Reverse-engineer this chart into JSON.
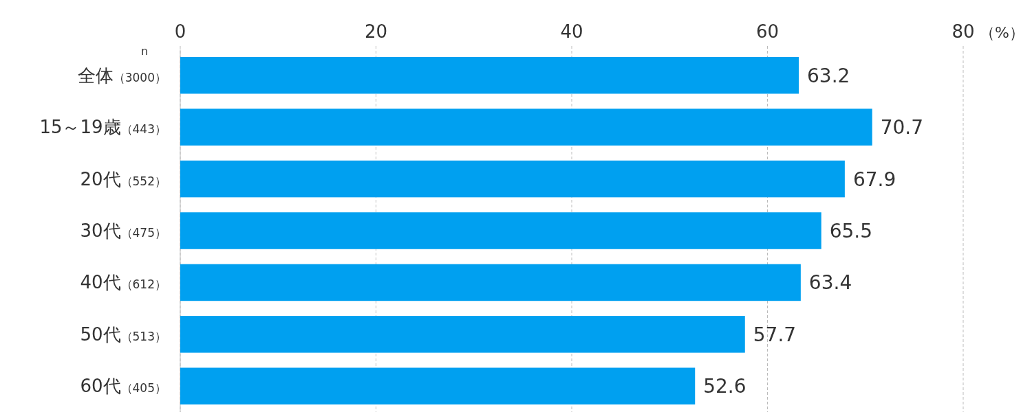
{
  "chart_data": {
    "type": "bar",
    "orientation": "horizontal",
    "categories": [
      "全体（3000）",
      "15～19歳（443）",
      "20代（552）",
      "30代（475）",
      "40代（612）",
      "50代（513）",
      "60代（405）"
    ],
    "values": [
      63.2,
      70.7,
      67.9,
      65.5,
      63.4,
      57.7,
      52.6
    ],
    "color": "#00a0f0",
    "data_labels": true,
    "xlim": [
      0,
      80
    ],
    "xticks": [
      0,
      20,
      40,
      60,
      80
    ],
    "xlabel": "（%）",
    "grid": "x",
    "annotations": [
      "n"
    ]
  }
}
